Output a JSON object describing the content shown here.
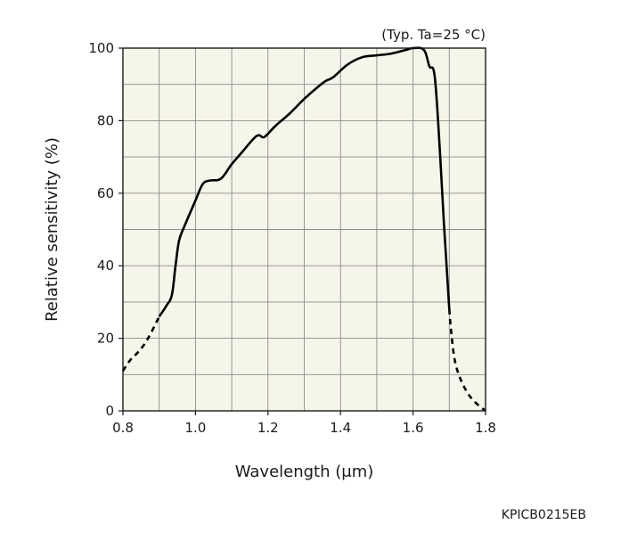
{
  "chart_data": {
    "type": "line",
    "title": "",
    "annotation": "(Typ. Ta=25 °C)",
    "xlabel": "Wavelength (μm)",
    "ylabel": "Relative sensitivity (%)",
    "xlim": [
      0.8,
      1.8
    ],
    "ylim": [
      0,
      100
    ],
    "x_ticks": [
      0.8,
      1.0,
      1.2,
      1.4,
      1.6,
      1.8
    ],
    "x_tick_labels": [
      "0.8",
      "1.0",
      "1.2",
      "1.4",
      "1.6",
      "1.8"
    ],
    "y_ticks": [
      0,
      20,
      40,
      60,
      80,
      100
    ],
    "y_tick_labels": [
      "0",
      "20",
      "40",
      "60",
      "80",
      "100"
    ],
    "x_minor_step": 0.1,
    "y_minor_step": 10,
    "grid": true,
    "plot_background": "#f6f5ea",
    "grid_color": "#8c8c8c",
    "line_color": "#000000",
    "series": [
      {
        "style": "dashed",
        "x": [
          0.8,
          0.82,
          0.84,
          0.86,
          0.88,
          0.9
        ],
        "y": [
          11,
          14,
          16,
          18.5,
          22,
          26
        ]
      },
      {
        "style": "solid",
        "x": [
          0.9,
          0.92,
          0.935,
          0.945,
          0.955,
          0.97,
          1.0,
          1.02,
          1.04,
          1.07,
          1.1,
          1.13,
          1.16,
          1.175,
          1.19,
          1.22,
          1.26,
          1.3,
          1.34,
          1.36,
          1.38,
          1.42,
          1.46,
          1.5,
          1.54,
          1.58,
          1.6,
          1.63,
          1.645,
          1.66,
          1.675,
          1.685,
          1.695,
          1.7
        ],
        "y": [
          26,
          29,
          32,
          40,
          47,
          51,
          58,
          62.5,
          63.5,
          64,
          68,
          71.5,
          75,
          76,
          75.5,
          78.5,
          82,
          86,
          89.5,
          91,
          92,
          95.5,
          97.5,
          98,
          98.5,
          99.5,
          100,
          99.5,
          95,
          92,
          70,
          52,
          36,
          28
        ]
      },
      {
        "style": "dashed",
        "x": [
          1.7,
          1.705,
          1.715,
          1.73,
          1.75,
          1.77,
          1.79,
          1.8
        ],
        "y": [
          28,
          22,
          14,
          9,
          5,
          2.5,
          0.8,
          0
        ]
      }
    ]
  },
  "figure_code": "KPICB0215EB"
}
